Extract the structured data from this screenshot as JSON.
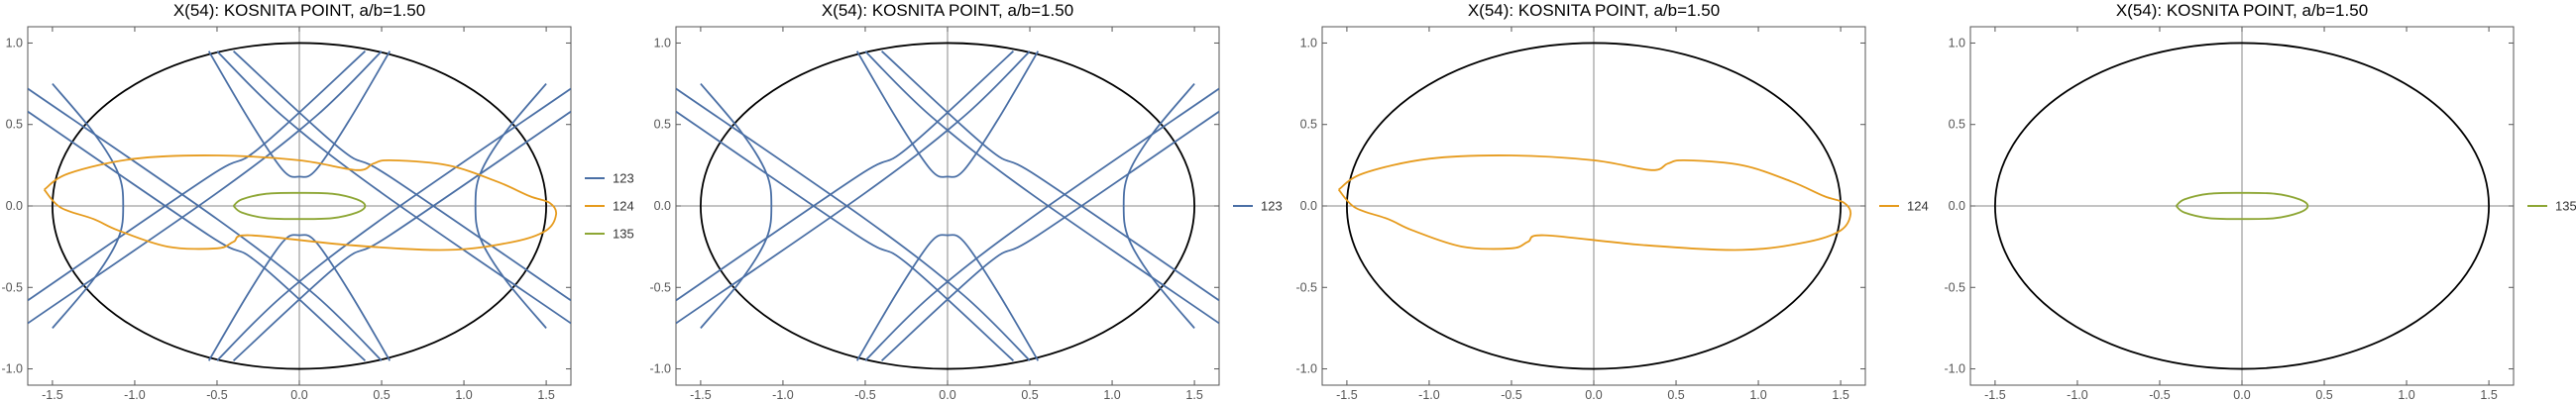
{
  "colors": {
    "123": "#4a6fa5",
    "124": "#e69b1d",
    "135": "#8da634",
    "ellipse": "#000000",
    "axis": "#888888",
    "frame": "#555555"
  },
  "chart_data": [
    {
      "type": "line",
      "title": "X(54): KOSNITA POINT, a/b=1.50",
      "xlim": [
        -1.65,
        1.65
      ],
      "ylim": [
        -1.1,
        1.1
      ],
      "x_ticks": [
        "-1.5",
        "-1.0",
        "-0.5",
        "0.0",
        "0.5",
        "1.0",
        "1.5"
      ],
      "y_ticks": [
        "-1.0",
        "-0.5",
        "0.0",
        "0.5",
        "1.0"
      ],
      "ellipse": {
        "a": 1.5,
        "b": 1.0
      },
      "legend": [
        "123",
        "124",
        "135"
      ],
      "series": [
        "123",
        "124",
        "135"
      ]
    },
    {
      "type": "line",
      "title": "X(54): KOSNITA POINT, a/b=1.50",
      "xlim": [
        -1.65,
        1.65
      ],
      "ylim": [
        -1.1,
        1.1
      ],
      "x_ticks": [
        "-1.5",
        "-1.0",
        "-0.5",
        "0.0",
        "0.5",
        "1.0",
        "1.5"
      ],
      "y_ticks": [
        "-1.0",
        "-0.5",
        "0.0",
        "0.5",
        "1.0"
      ],
      "ellipse": {
        "a": 1.5,
        "b": 1.0
      },
      "legend": [
        "123"
      ],
      "series": [
        "123"
      ]
    },
    {
      "type": "line",
      "title": "X(54): KOSNITA POINT, a/b=1.50",
      "xlim": [
        -1.65,
        1.65
      ],
      "ylim": [
        -1.1,
        1.1
      ],
      "x_ticks": [
        "-1.5",
        "-1.0",
        "-0.5",
        "0.0",
        "0.5",
        "1.0",
        "1.5"
      ],
      "y_ticks": [
        "-1.0",
        "-0.5",
        "0.0",
        "0.5",
        "1.0"
      ],
      "ellipse": {
        "a": 1.5,
        "b": 1.0
      },
      "legend": [
        "124"
      ],
      "series": [
        "124"
      ]
    },
    {
      "type": "line",
      "title": "X(54): KOSNITA POINT, a/b=1.50",
      "xlim": [
        -1.65,
        1.65
      ],
      "ylim": [
        -1.1,
        1.1
      ],
      "x_ticks": [
        "-1.5",
        "-1.0",
        "-0.5",
        "0.0",
        "0.5",
        "1.0",
        "1.5"
      ],
      "y_ticks": [
        "-1.0",
        "-0.5",
        "0.0",
        "0.5",
        "1.0"
      ],
      "ellipse": {
        "a": 1.5,
        "b": 1.0
      },
      "legend": [
        "135"
      ],
      "series": [
        "135"
      ]
    }
  ],
  "curves": {
    "123": [
      [
        [
          -1.65,
          -0.58
        ],
        [
          -0.55,
          0.18
        ],
        [
          -0.25,
          0.35
        ],
        [
          0.4,
          0.95
        ]
      ],
      [
        [
          -1.65,
          -0.72
        ],
        [
          -0.5,
          0.08
        ],
        [
          0.1,
          0.55
        ],
        [
          0.5,
          0.95
        ]
      ],
      [
        [
          -1.65,
          0.58
        ],
        [
          -0.55,
          -0.18
        ],
        [
          -0.25,
          -0.35
        ],
        [
          0.4,
          -0.95
        ]
      ],
      [
        [
          -1.65,
          0.72
        ],
        [
          -0.5,
          -0.08
        ],
        [
          0.1,
          -0.55
        ],
        [
          0.5,
          -0.95
        ]
      ],
      [
        [
          1.65,
          -0.58
        ],
        [
          0.55,
          0.18
        ],
        [
          0.25,
          0.35
        ],
        [
          -0.4,
          0.95
        ]
      ],
      [
        [
          1.65,
          -0.72
        ],
        [
          0.5,
          0.08
        ],
        [
          -0.1,
          0.55
        ],
        [
          -0.5,
          0.95
        ]
      ],
      [
        [
          1.65,
          0.58
        ],
        [
          0.55,
          -0.18
        ],
        [
          0.25,
          -0.35
        ],
        [
          -0.4,
          -0.95
        ]
      ],
      [
        [
          1.65,
          0.72
        ],
        [
          0.5,
          -0.08
        ],
        [
          -0.1,
          -0.55
        ],
        [
          -0.5,
          -0.95
        ]
      ],
      [
        [
          -0.55,
          0.95
        ],
        [
          -0.3,
          0.52
        ],
        [
          -0.1,
          0.22
        ],
        [
          0.0,
          0.18
        ],
        [
          0.1,
          0.22
        ],
        [
          0.3,
          0.52
        ],
        [
          0.55,
          0.95
        ]
      ],
      [
        [
          -0.55,
          -0.95
        ],
        [
          -0.3,
          -0.52
        ],
        [
          -0.1,
          -0.22
        ],
        [
          0.0,
          -0.18
        ],
        [
          0.1,
          -0.22
        ],
        [
          0.3,
          -0.52
        ],
        [
          0.55,
          -0.95
        ]
      ],
      [
        [
          -1.5,
          0.75
        ],
        [
          -1.25,
          0.45
        ],
        [
          -1.1,
          0.2
        ],
        [
          -1.07,
          0.0
        ],
        [
          -1.1,
          -0.2
        ],
        [
          -1.25,
          -0.45
        ],
        [
          -1.5,
          -0.75
        ]
      ],
      [
        [
          1.5,
          0.75
        ],
        [
          1.25,
          0.45
        ],
        [
          1.1,
          0.2
        ],
        [
          1.07,
          0.0
        ],
        [
          1.1,
          -0.2
        ],
        [
          1.25,
          -0.45
        ],
        [
          1.5,
          -0.75
        ]
      ]
    ],
    "124": [
      [
        [
          -1.55,
          0.1
        ],
        [
          -1.4,
          0.2
        ],
        [
          -1.0,
          0.29
        ],
        [
          -0.5,
          0.31
        ],
        [
          0.0,
          0.28
        ],
        [
          0.35,
          0.22
        ],
        [
          0.45,
          0.26
        ],
        [
          0.55,
          0.28
        ],
        [
          0.9,
          0.25
        ],
        [
          1.2,
          0.15
        ],
        [
          1.4,
          0.06
        ],
        [
          1.52,
          0.02
        ],
        [
          1.56,
          -0.05
        ],
        [
          1.5,
          -0.15
        ],
        [
          1.3,
          -0.22
        ],
        [
          0.9,
          -0.27
        ],
        [
          0.3,
          -0.24
        ],
        [
          -0.3,
          -0.18
        ],
        [
          -0.4,
          -0.22
        ],
        [
          -0.5,
          -0.26
        ],
        [
          -0.8,
          -0.25
        ],
        [
          -1.1,
          -0.15
        ],
        [
          -1.25,
          -0.08
        ],
        [
          -1.45,
          -0.01
        ],
        [
          -1.55,
          0.1
        ]
      ]
    ],
    "135": [
      [
        [
          -0.4,
          0.0
        ],
        [
          -0.35,
          0.04
        ],
        [
          -0.2,
          0.075
        ],
        [
          0.0,
          0.08
        ],
        [
          0.2,
          0.075
        ],
        [
          0.35,
          0.04
        ],
        [
          0.4,
          0.0
        ],
        [
          0.35,
          -0.04
        ],
        [
          0.2,
          -0.075
        ],
        [
          0.0,
          -0.08
        ],
        [
          -0.2,
          -0.075
        ],
        [
          -0.35,
          -0.04
        ],
        [
          -0.4,
          0.0
        ]
      ]
    ]
  }
}
